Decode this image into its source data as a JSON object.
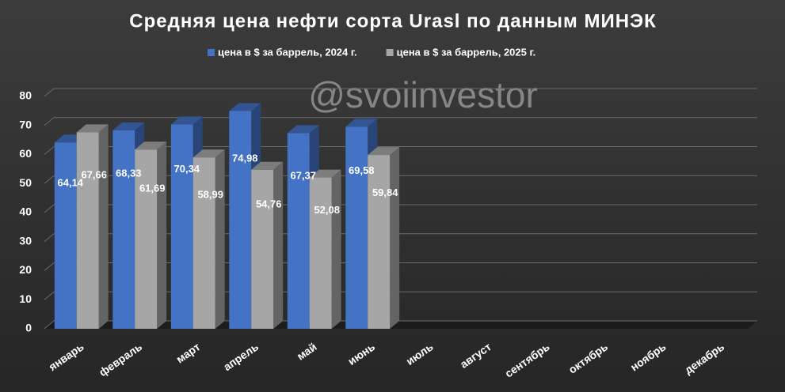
{
  "chart_data": {
    "type": "bar3d",
    "title": "Средняя цена нефти сорта Urasl по данным МИНЭК",
    "annotations": [
      "@svoiinvestor"
    ],
    "categories": [
      "январь",
      "февраль",
      "март",
      "апрель",
      "май",
      "июнь",
      "июль",
      "август",
      "сентябрь",
      "октябрь",
      "ноябрь",
      "декабрь"
    ],
    "series": [
      {
        "name": "цена в $ за баррель, 2024 г.",
        "color": "#4472c4",
        "values": [
          64.14,
          68.33,
          70.34,
          74.98,
          67.37,
          69.58,
          null,
          null,
          null,
          null,
          null,
          null
        ],
        "value_labels": [
          "64,14",
          "68,33",
          "70,34",
          "74,98",
          "67,37",
          "69,58",
          null,
          null,
          null,
          null,
          null,
          null
        ]
      },
      {
        "name": "цена в $ за баррель, 2025 г.",
        "color": "#a6a6a6",
        "values": [
          67.66,
          61.69,
          58.99,
          54.76,
          52.08,
          59.84,
          null,
          null,
          null,
          null,
          null,
          null
        ],
        "value_labels": [
          "67,66",
          "61,69",
          "58,99",
          "54,76",
          "52,08",
          "59,84",
          null,
          null,
          null,
          null,
          null,
          null
        ]
      }
    ],
    "ylim": [
      0,
      80
    ],
    "yticks": [
      0,
      10,
      20,
      30,
      40,
      50,
      60,
      70,
      80
    ],
    "grid": true,
    "legend": "top"
  }
}
